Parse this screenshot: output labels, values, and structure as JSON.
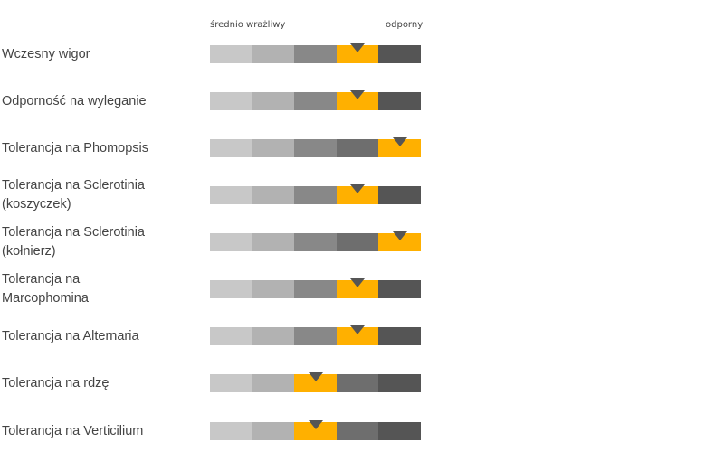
{
  "chart_data": {
    "type": "rating-scale",
    "scale_min_label": "średnio wrażliwy",
    "scale_max_label": "odporny",
    "levels": 5,
    "colors": {
      "segments": [
        "#c8c8c8",
        "#b2b2b2",
        "#888888",
        "#6e6e6e",
        "#555555"
      ],
      "highlight": "#ffb000",
      "marker": "#555555"
    },
    "rows": [
      {
        "label": [
          "Wczesny wigor"
        ],
        "rating": 4
      },
      {
        "label": [
          "Odporność na wyleganie"
        ],
        "rating": 4
      },
      {
        "label": [
          "Tolerancja na Phomopsis"
        ],
        "rating": 5
      },
      {
        "label": [
          "Tolerancja na Sclerotinia",
          "(koszyczek)"
        ],
        "rating": 4
      },
      {
        "label": [
          "Tolerancja na Sclerotinia",
          "(kołnierz)"
        ],
        "rating": 5
      },
      {
        "label": [
          "Tolerancja na",
          "Marcophomina"
        ],
        "rating": 4
      },
      {
        "label": [
          "Tolerancja na Alternaria"
        ],
        "rating": 4
      },
      {
        "label": [
          "Tolerancja na rdzę"
        ],
        "rating": 3
      },
      {
        "label": [
          "Tolerancja na Verticilium"
        ],
        "rating": 3
      }
    ]
  }
}
